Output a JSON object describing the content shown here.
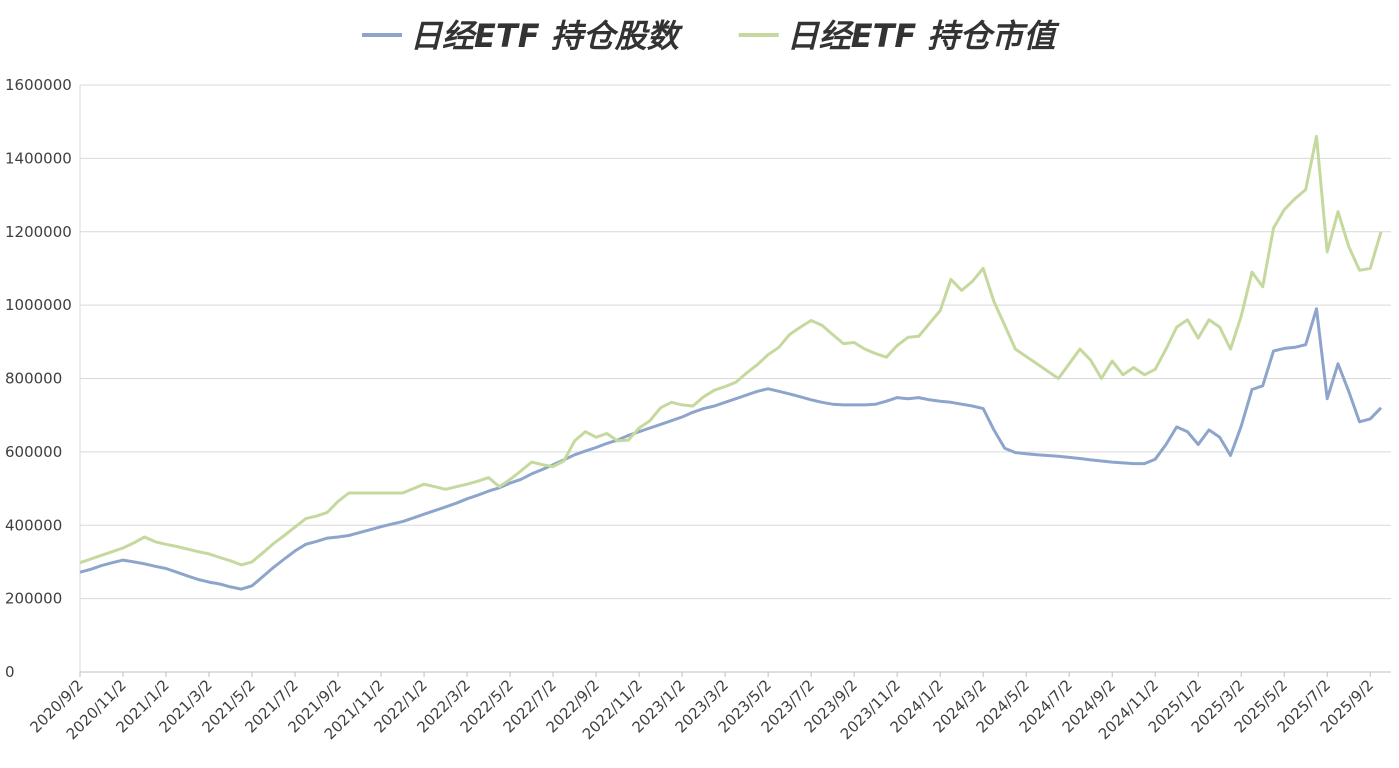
{
  "chart_data": {
    "type": "line",
    "categories": [
      "2020/9/2",
      null,
      null,
      null,
      "2020/11/2",
      null,
      null,
      null,
      "2021/1/2",
      null,
      null,
      null,
      "2021/3/2",
      null,
      null,
      null,
      "2021/5/2",
      null,
      null,
      null,
      "2021/7/2",
      null,
      null,
      null,
      "2021/9/2",
      null,
      null,
      null,
      "2021/11/2",
      null,
      null,
      null,
      "2022/1/2",
      null,
      null,
      null,
      "2022/3/2",
      null,
      null,
      null,
      "2022/5/2",
      null,
      null,
      null,
      "2022/7/2",
      null,
      null,
      null,
      "2022/9/2",
      null,
      null,
      null,
      "2022/11/2",
      null,
      null,
      null,
      "2023/1/2",
      null,
      null,
      null,
      "2023/3/2",
      null,
      null,
      null,
      "2023/5/2",
      null,
      null,
      null,
      "2023/7/2",
      null,
      null,
      null,
      "2023/9/2",
      null,
      null,
      null,
      "2023/11/2",
      null,
      null,
      null,
      "2024/1/2",
      null,
      null,
      null,
      "2024/3/2",
      null,
      null,
      null,
      "2024/5/2",
      null,
      null,
      null,
      "2024/7/2",
      null,
      null,
      null,
      "2024/9/2",
      null,
      null,
      null,
      "2024/11/2",
      null,
      null,
      null,
      "2025/1/2",
      null,
      null,
      null,
      "2025/3/2",
      null,
      null,
      null,
      "2025/5/2",
      null,
      null,
      null,
      "2025/7/2",
      null,
      null,
      null,
      "2025/9/2",
      null
    ],
    "series": [
      {
        "name": "日经ETF 持仓股数",
        "color": "#8EA5CB",
        "values": [
          272000,
          280000,
          290000,
          298000,
          305000,
          300000,
          295000,
          288000,
          282000,
          272000,
          262000,
          252000,
          245000,
          240000,
          232000,
          226000,
          235000,
          260000,
          285000,
          308000,
          330000,
          348000,
          356000,
          365000,
          368000,
          372000,
          380000,
          388000,
          396000,
          403000,
          410000,
          420000,
          430000,
          440000,
          450000,
          460000,
          472000,
          482000,
          493000,
          502000,
          515000,
          525000,
          540000,
          552000,
          565000,
          578000,
          592000,
          602000,
          612000,
          623000,
          632000,
          645000,
          655000,
          665000,
          675000,
          685000,
          695000,
          708000,
          718000,
          725000,
          735000,
          745000,
          755000,
          765000,
          772000,
          765000,
          758000,
          750000,
          742000,
          735000,
          730000,
          728000,
          728000,
          728000,
          730000,
          738000,
          748000,
          745000,
          748000,
          742000,
          738000,
          735000,
          730000,
          725000,
          718000,
          660000,
          610000,
          598000,
          595000,
          592000,
          590000,
          588000,
          585000,
          582000,
          578000,
          575000,
          572000,
          570000,
          568000,
          568000,
          580000,
          620000,
          668000,
          655000,
          620000,
          660000,
          640000,
          590000,
          670000,
          770000,
          780000,
          875000,
          882000,
          885000,
          892000,
          990000,
          745000,
          840000,
          765000,
          682000,
          690000,
          720000
        ]
      },
      {
        "name": "日经ETF 持仓市值",
        "color": "#C5D99E",
        "values": [
          298000,
          308000,
          318000,
          328000,
          338000,
          352000,
          368000,
          355000,
          348000,
          342000,
          335000,
          328000,
          322000,
          312000,
          303000,
          292000,
          300000,
          325000,
          350000,
          372000,
          395000,
          418000,
          425000,
          435000,
          465000,
          488000,
          488000,
          488000,
          488000,
          488000,
          488000,
          500000,
          512000,
          505000,
          498000,
          505000,
          512000,
          520000,
          530000,
          505000,
          525000,
          548000,
          572000,
          565000,
          560000,
          575000,
          630000,
          655000,
          640000,
          650000,
          630000,
          632000,
          665000,
          685000,
          720000,
          735000,
          728000,
          725000,
          750000,
          768000,
          778000,
          790000,
          815000,
          838000,
          865000,
          885000,
          920000,
          940000,
          958000,
          945000,
          920000,
          895000,
          898000,
          880000,
          868000,
          858000,
          890000,
          912000,
          915000,
          950000,
          985000,
          1070000,
          1040000,
          1065000,
          1100000,
          1010000,
          945000,
          880000,
          860000,
          840000,
          820000,
          800000,
          840000,
          880000,
          850000,
          800000,
          848000,
          810000,
          830000,
          810000,
          825000,
          880000,
          940000,
          960000,
          910000,
          960000,
          940000,
          880000,
          970000,
          1090000,
          1050000,
          1210000,
          1260000,
          1290000,
          1315000,
          1460000,
          1145000,
          1255000,
          1160000,
          1095000,
          1100000,
          1200000
        ]
      }
    ],
    "ylim": [
      0,
      1600000
    ],
    "yticks": [
      0,
      200000,
      400000,
      600000,
      800000,
      1000000,
      1200000,
      1400000,
      1600000
    ],
    "grid": true
  }
}
